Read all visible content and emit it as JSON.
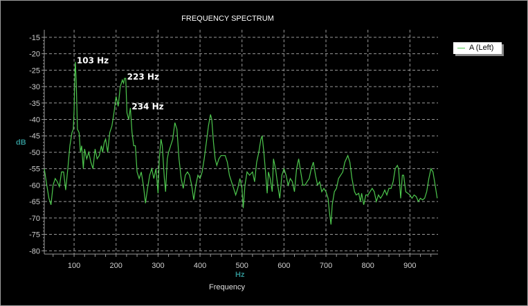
{
  "chart_data": {
    "type": "line",
    "title": "FREQUENCY SPECTRUM",
    "xlabel": "Frequency",
    "xunit": "Hz",
    "ylabel": "dB",
    "xlim": [
      29,
      967
    ],
    "ylim": [
      -81,
      -12.7
    ],
    "grid": true,
    "legend_placement": "top-right",
    "xticks": [
      100,
      200,
      300,
      400,
      500,
      600,
      700,
      800,
      900
    ],
    "yticks": [
      -15,
      -20,
      -25,
      -30,
      -35,
      -40,
      -45,
      -50,
      -55,
      -60,
      -65,
      -70,
      -75,
      -80
    ],
    "colors": {
      "series": "#4ec94e",
      "background": "#000000",
      "grid": "#9a9a9a",
      "axis_label": "#2f8f8f"
    },
    "annotations": [
      {
        "text": "103 Hz",
        "x": 103,
        "y": -22.5
      },
      {
        "text": "223 Hz",
        "x": 223,
        "y": -27.5
      },
      {
        "text": "234 Hz",
        "x": 234,
        "y": -36.5
      }
    ],
    "series": [
      {
        "name": "A (Left)",
        "points": [
          [
            29,
            -55
          ],
          [
            35,
            -60
          ],
          [
            40,
            -64
          ],
          [
            45,
            -66
          ],
          [
            50,
            -60
          ],
          [
            55,
            -58
          ],
          [
            60,
            -59
          ],
          [
            65,
            -60.5
          ],
          [
            70,
            -56
          ],
          [
            75,
            -56
          ],
          [
            80,
            -61.5
          ],
          [
            85,
            -55
          ],
          [
            90,
            -48
          ],
          [
            95,
            -44
          ],
          [
            98,
            -43
          ],
          [
            100,
            -37
          ],
          [
            102,
            -25
          ],
          [
            103,
            -22.5
          ],
          [
            105,
            -28
          ],
          [
            108,
            -43
          ],
          [
            112,
            -44
          ],
          [
            115,
            -50
          ],
          [
            118,
            -48
          ],
          [
            122,
            -55
          ],
          [
            125,
            -49
          ],
          [
            130,
            -52
          ],
          [
            135,
            -50
          ],
          [
            140,
            -53
          ],
          [
            145,
            -55
          ],
          [
            150,
            -49
          ],
          [
            155,
            -52
          ],
          [
            160,
            -51
          ],
          [
            165,
            -48
          ],
          [
            168,
            -50
          ],
          [
            172,
            -47
          ],
          [
            175,
            -46
          ],
          [
            180,
            -50
          ],
          [
            185,
            -44
          ],
          [
            190,
            -42
          ],
          [
            195,
            -38
          ],
          [
            200,
            -33
          ],
          [
            205,
            -36
          ],
          [
            210,
            -30
          ],
          [
            215,
            -28
          ],
          [
            218,
            -29
          ],
          [
            220,
            -27.5
          ],
          [
            223,
            -27.5
          ],
          [
            226,
            -38
          ],
          [
            230,
            -40
          ],
          [
            234,
            -36.5
          ],
          [
            238,
            -44
          ],
          [
            242,
            -48
          ],
          [
            246,
            -48
          ],
          [
            250,
            -56
          ],
          [
            255,
            -58
          ],
          [
            260,
            -56
          ],
          [
            265,
            -60
          ],
          [
            270,
            -65.5
          ],
          [
            275,
            -61
          ],
          [
            280,
            -57
          ],
          [
            285,
            -55
          ],
          [
            290,
            -58
          ],
          [
            295,
            -55
          ],
          [
            300,
            -62.5
          ],
          [
            303,
            -52
          ],
          [
            307,
            -46
          ],
          [
            310,
            -48
          ],
          [
            315,
            -58
          ],
          [
            318,
            -62
          ],
          [
            322,
            -52
          ],
          [
            325,
            -50
          ],
          [
            330,
            -48
          ],
          [
            335,
            -46
          ],
          [
            340,
            -41
          ],
          [
            345,
            -43
          ],
          [
            350,
            -52
          ],
          [
            355,
            -58
          ],
          [
            360,
            -61
          ],
          [
            365,
            -57
          ],
          [
            370,
            -56
          ],
          [
            375,
            -57
          ],
          [
            380,
            -60
          ],
          [
            385,
            -64.5
          ],
          [
            390,
            -60
          ],
          [
            395,
            -57
          ],
          [
            400,
            -58
          ],
          [
            405,
            -56
          ],
          [
            410,
            -52
          ],
          [
            415,
            -47
          ],
          [
            420,
            -42
          ],
          [
            425,
            -38.5
          ],
          [
            428,
            -40
          ],
          [
            432,
            -47
          ],
          [
            436,
            -52
          ],
          [
            440,
            -54
          ],
          [
            445,
            -52
          ],
          [
            450,
            -51
          ],
          [
            460,
            -51
          ],
          [
            465,
            -53
          ],
          [
            470,
            -57
          ],
          [
            480,
            -61
          ],
          [
            485,
            -63
          ],
          [
            490,
            -61
          ],
          [
            495,
            -58
          ],
          [
            500,
            -61
          ],
          [
            503,
            -67
          ],
          [
            507,
            -60
          ],
          [
            512,
            -56
          ],
          [
            518,
            -57
          ],
          [
            525,
            -56
          ],
          [
            530,
            -59
          ],
          [
            535,
            -53
          ],
          [
            540,
            -50
          ],
          [
            545,
            -46
          ],
          [
            548,
            -45
          ],
          [
            552,
            -50
          ],
          [
            556,
            -56
          ],
          [
            560,
            -62.5
          ],
          [
            563,
            -56
          ],
          [
            567,
            -58
          ],
          [
            572,
            -62
          ],
          [
            575,
            -52
          ],
          [
            580,
            -55
          ],
          [
            585,
            -60
          ],
          [
            590,
            -64
          ],
          [
            595,
            -57
          ],
          [
            600,
            -55
          ],
          [
            605,
            -57
          ],
          [
            610,
            -60
          ],
          [
            615,
            -58
          ],
          [
            620,
            -59
          ],
          [
            625,
            -62
          ],
          [
            630,
            -55
          ],
          [
            635,
            -52
          ],
          [
            640,
            -56
          ],
          [
            645,
            -60
          ],
          [
            650,
            -60
          ],
          [
            655,
            -59
          ],
          [
            660,
            -58
          ],
          [
            665,
            -55
          ],
          [
            670,
            -53
          ],
          [
            675,
            -57
          ],
          [
            680,
            -60
          ],
          [
            685,
            -59
          ],
          [
            690,
            -62
          ],
          [
            695,
            -61
          ],
          [
            700,
            -62
          ],
          [
            705,
            -64
          ],
          [
            708,
            -68
          ],
          [
            712,
            -72
          ],
          [
            715,
            -66
          ],
          [
            720,
            -62
          ],
          [
            725,
            -61
          ],
          [
            730,
            -58
          ],
          [
            740,
            -56
          ],
          [
            745,
            -53
          ],
          [
            752,
            -51
          ],
          [
            757,
            -53
          ],
          [
            762,
            -58
          ],
          [
            768,
            -62
          ],
          [
            772,
            -63
          ],
          [
            778,
            -62.5
          ],
          [
            782,
            -65
          ],
          [
            785,
            -62.5
          ],
          [
            790,
            -66
          ],
          [
            795,
            -63
          ],
          [
            800,
            -63
          ],
          [
            805,
            -62
          ],
          [
            810,
            -61
          ],
          [
            815,
            -62
          ],
          [
            820,
            -65
          ],
          [
            825,
            -63
          ],
          [
            830,
            -64
          ],
          [
            835,
            -63
          ],
          [
            840,
            -61.5
          ],
          [
            845,
            -63
          ],
          [
            850,
            -61
          ],
          [
            855,
            -61
          ],
          [
            860,
            -59
          ],
          [
            865,
            -55
          ],
          [
            870,
            -54
          ],
          [
            873,
            -55
          ],
          [
            878,
            -64
          ],
          [
            882,
            -57
          ],
          [
            885,
            -57
          ],
          [
            890,
            -62
          ],
          [
            895,
            -62.5
          ],
          [
            900,
            -63
          ],
          [
            905,
            -64
          ],
          [
            910,
            -63
          ],
          [
            915,
            -63.5
          ],
          [
            920,
            -65
          ],
          [
            925,
            -64
          ],
          [
            930,
            -64.5
          ],
          [
            935,
            -64
          ],
          [
            940,
            -62
          ],
          [
            945,
            -58
          ],
          [
            950,
            -55
          ],
          [
            955,
            -56
          ],
          [
            960,
            -60
          ],
          [
            965,
            -64
          ]
        ]
      }
    ]
  }
}
